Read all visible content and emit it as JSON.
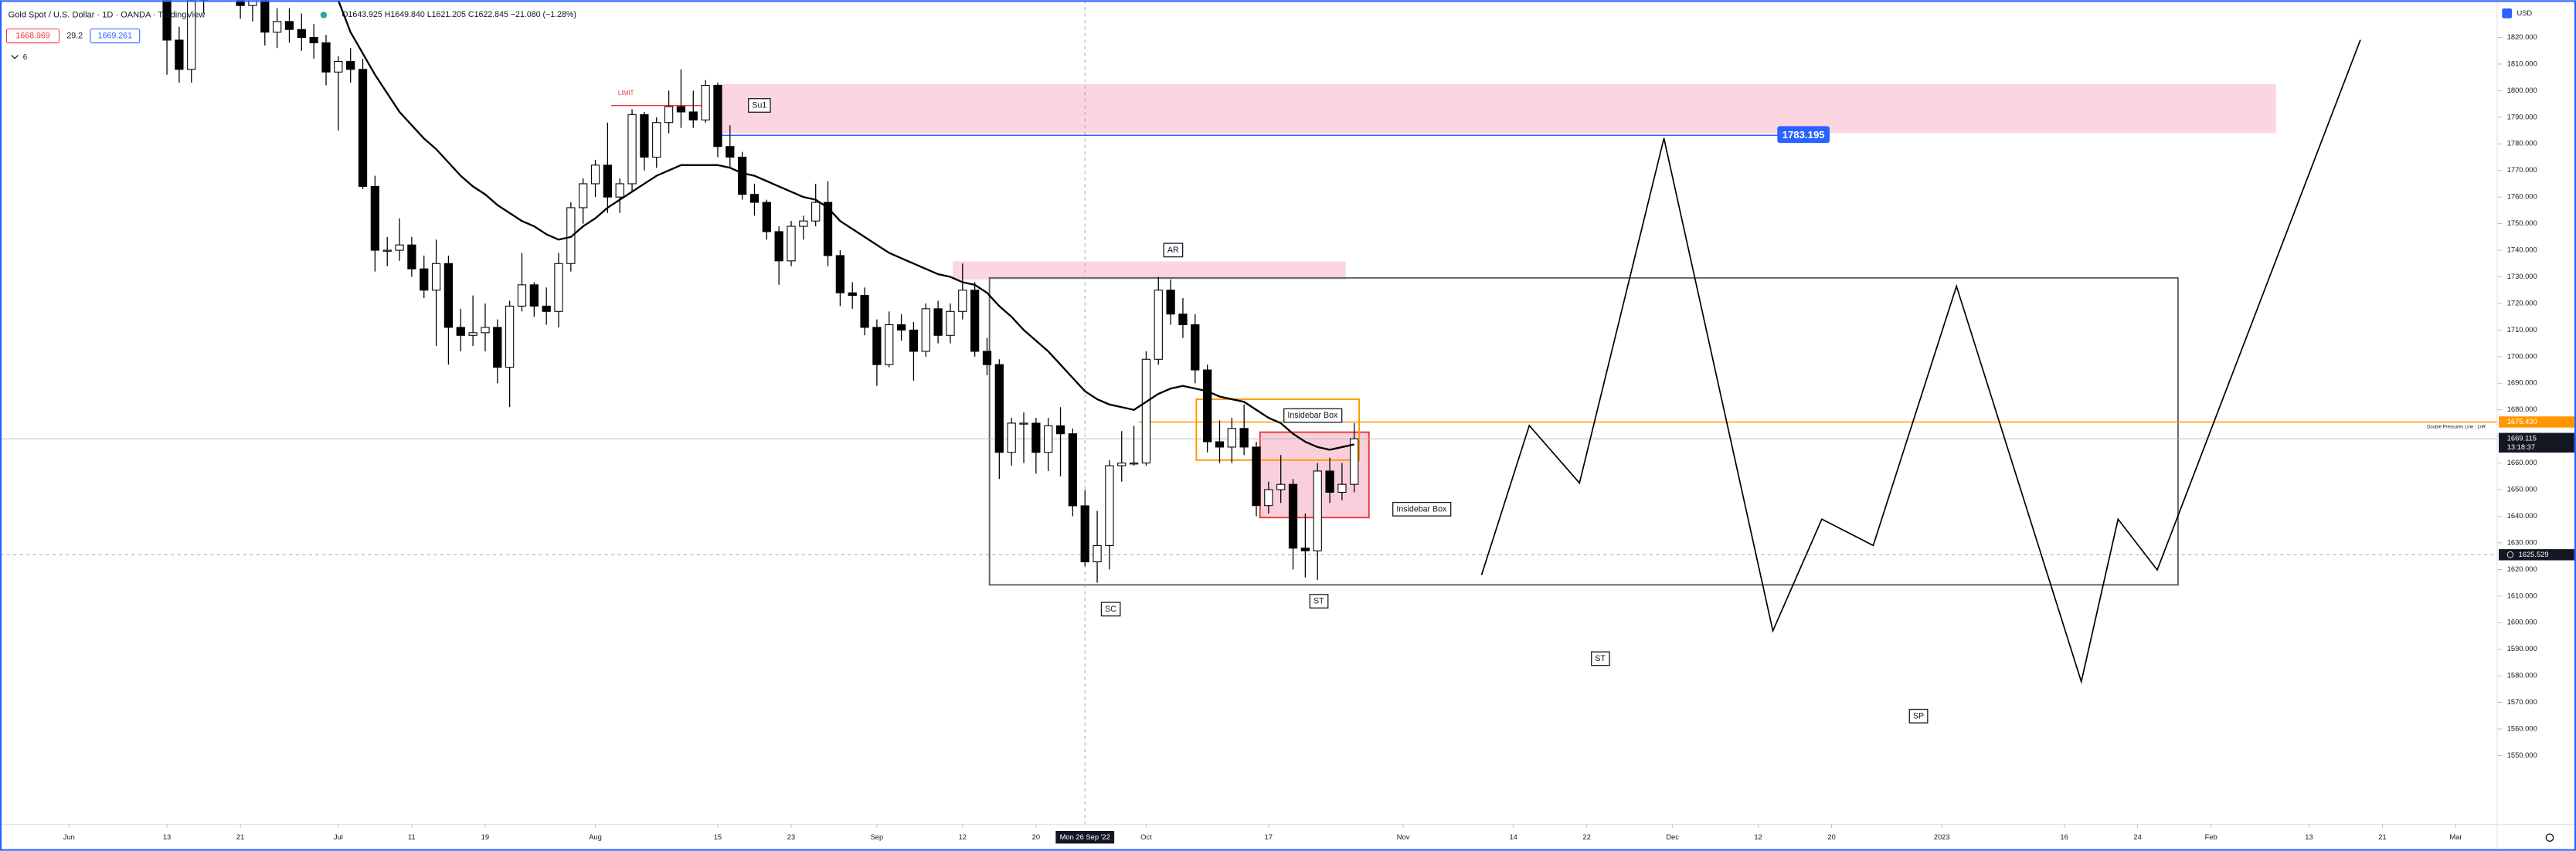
{
  "header": {
    "symbol": "Gold Spot / U.S. Dollar · 1D · OANDA · TradingView",
    "ohlc": "O1643.925 H1649.840 L1621.205 C1622.845 −21.080 (−1.28%)",
    "bid": 1668.969,
    "spread": 29.2,
    "ask": 1669.261,
    "indicators": 6,
    "currency": "USD"
  },
  "chart_data": {
    "type": "candlestick",
    "xlim": [
      -5.638,
      197.7
    ],
    "xticks": [
      {
        "value": 0,
        "label": "Jun"
      },
      {
        "value": 8,
        "label": "13"
      },
      {
        "value": 14,
        "label": "21"
      },
      {
        "value": 22,
        "label": "Jul"
      },
      {
        "value": 28,
        "label": "11"
      },
      {
        "value": 34,
        "label": "19"
      },
      {
        "value": 43,
        "label": "Aug"
      },
      {
        "value": 53,
        "label": "15"
      },
      {
        "value": 59,
        "label": "23"
      },
      {
        "value": 66,
        "label": "Sep"
      },
      {
        "value": 73,
        "label": "12"
      },
      {
        "value": 79,
        "label": "20"
      },
      {
        "value": 88,
        "label": "Oct"
      },
      {
        "value": 98,
        "label": "17"
      },
      {
        "value": 109,
        "label": "Nov"
      },
      {
        "value": 118,
        "label": "14"
      },
      {
        "value": 124,
        "label": "22"
      },
      {
        "value": 131,
        "label": "Dec"
      },
      {
        "value": 138,
        "label": "12"
      },
      {
        "value": 144,
        "label": "20"
      },
      {
        "value": 153,
        "label": "2023"
      },
      {
        "value": 163,
        "label": "16"
      },
      {
        "value": 169,
        "label": "24"
      },
      {
        "value": 175,
        "label": "Feb"
      },
      {
        "value": 183,
        "label": "13"
      },
      {
        "value": 189,
        "label": "21"
      },
      {
        "value": 195,
        "label": "Mar"
      }
    ],
    "ylim": [
      1524.1,
      1834
    ],
    "yticks": [
      {
        "value": 1550,
        "label": "1550.000"
      },
      {
        "value": 1560,
        "label": "1560.000"
      },
      {
        "value": 1570,
        "label": "1570.000"
      },
      {
        "value": 1580,
        "label": "1580.000"
      },
      {
        "value": 1590,
        "label": "1590.000"
      },
      {
        "value": 1600,
        "label": "1600.000"
      },
      {
        "value": 1610,
        "label": "1610.000"
      },
      {
        "value": 1620,
        "label": "1620.000"
      },
      {
        "value": 1630,
        "label": "1630.000"
      },
      {
        "value": 1640,
        "label": "1640.000"
      },
      {
        "value": 1650,
        "label": "1650.000"
      },
      {
        "value": 1660,
        "label": "1660.000"
      },
      {
        "value": 1670,
        "label": "1670.000"
      },
      {
        "value": 1680,
        "label": "1680.000"
      },
      {
        "value": 1690,
        "label": "1690.000"
      },
      {
        "value": 1700,
        "label": "1700.000"
      },
      {
        "value": 1710,
        "label": "1710.000"
      },
      {
        "value": 1720,
        "label": "1720.000"
      },
      {
        "value": 1730,
        "label": "1730.000"
      },
      {
        "value": 1740,
        "label": "1740.000"
      },
      {
        "value": 1750,
        "label": "1750.000"
      },
      {
        "value": 1760,
        "label": "1760.000"
      },
      {
        "value": 1770,
        "label": "1770.000"
      },
      {
        "value": 1780,
        "label": "1780.000"
      },
      {
        "value": 1790,
        "label": "1790.000"
      },
      {
        "value": 1800,
        "label": "1800.000"
      },
      {
        "value": 1810,
        "label": "1810.000"
      },
      {
        "value": 1820,
        "label": "1820.000"
      }
    ],
    "x": [
      8,
      9,
      10,
      11,
      12,
      13,
      14,
      15,
      16,
      17,
      18,
      19,
      20,
      21,
      22,
      23,
      24,
      25,
      26,
      27,
      28,
      29,
      30,
      31,
      32,
      33,
      34,
      35,
      36,
      37,
      38,
      39,
      40,
      41,
      42,
      43,
      44,
      45,
      46,
      47,
      48,
      49,
      50,
      51,
      52,
      53,
      54,
      55,
      56,
      57,
      58,
      59,
      60,
      61,
      62,
      63,
      64,
      65,
      66,
      67,
      68,
      69,
      70,
      71,
      72,
      73,
      74,
      75,
      76,
      77,
      78,
      79,
      80,
      81,
      82,
      83,
      84,
      85,
      86,
      87,
      88,
      89,
      90,
      91,
      92,
      93,
      94,
      95,
      96,
      97,
      98,
      99,
      100,
      101,
      102,
      103,
      104,
      105
    ],
    "series": [
      {
        "type": "candlestick",
        "color": "#000000",
        "up_color": "#ffffff",
        "open": [
          1845,
          1819,
          1808,
          1834,
          1857,
          1840,
          1839,
          1832,
          1838,
          1822,
          1826,
          1823,
          1820,
          1818,
          1807,
          1811,
          1808,
          1764,
          1740,
          1740,
          1742,
          1733,
          1725,
          1735,
          1711,
          1708,
          1709,
          1711,
          1696,
          1719,
          1727,
          1719,
          1717,
          1735,
          1756,
          1765,
          1772,
          1760,
          1765,
          1791,
          1775,
          1788,
          1794,
          1792,
          1789,
          1802,
          1779,
          1775,
          1761,
          1758,
          1747,
          1736,
          1749,
          1751,
          1758,
          1738,
          1724,
          1723,
          1711,
          1697,
          1712,
          1710,
          1702,
          1718,
          1708,
          1717,
          1725,
          1702,
          1697,
          1664,
          1675,
          1675,
          1664,
          1674,
          1671,
          1643.925,
          1622.845,
          1629,
          1659,
          1660,
          1660,
          1699,
          1725,
          1716,
          1712,
          1695,
          1668,
          1666,
          1673,
          1666,
          1644,
          1650,
          1652,
          1628,
          1627,
          1657,
          1649,
          1652
        ],
        "high": [
          1850,
          1824,
          1839,
          1862,
          1862,
          1846,
          1844,
          1847,
          1843,
          1831,
          1831,
          1829,
          1825,
          1821,
          1813,
          1816,
          1812,
          1768,
          1745,
          1752,
          1745,
          1738,
          1744,
          1738,
          1718,
          1723,
          1720,
          1714,
          1721,
          1739,
          1728,
          1726,
          1739,
          1758,
          1767,
          1774,
          1788,
          1767,
          1793,
          1792,
          1790,
          1800,
          1808,
          1800,
          1804,
          1803,
          1787,
          1777,
          1765,
          1759,
          1749,
          1751,
          1753,
          1765,
          1766,
          1740,
          1728,
          1726,
          1714,
          1717,
          1716,
          1713,
          1720,
          1721,
          1720,
          1735,
          1728,
          1707,
          1699,
          1677,
          1679,
          1677,
          1677,
          1681,
          1673,
          1649.84,
          1642,
          1661,
          1672,
          1674,
          1702,
          1730,
          1729,
          1722,
          1716,
          1697,
          1676,
          1677,
          1682,
          1668,
          1653,
          1663,
          1654,
          1641,
          1660,
          1662,
          1660,
          1675
        ],
        "low": [
          1806,
          1803,
          1803,
          1829,
          1835,
          1834,
          1827,
          1826,
          1817,
          1816,
          1818,
          1815,
          1812,
          1802,
          1785,
          1803,
          1763,
          1732,
          1734,
          1736,
          1730,
          1722,
          1704,
          1697,
          1702,
          1704,
          1702,
          1690,
          1681,
          1717,
          1715,
          1712,
          1711,
          1732,
          1750,
          1760,
          1754,
          1754,
          1762,
          1770,
          1771,
          1784,
          1786,
          1786,
          1788,
          1775,
          1771,
          1759,
          1753,
          1744,
          1727,
          1734,
          1744,
          1749,
          1734,
          1719,
          1718,
          1708,
          1689,
          1696,
          1706,
          1691,
          1700,
          1705,
          1705,
          1714,
          1700,
          1693,
          1654,
          1659,
          1660,
          1656,
          1657,
          1655,
          1640,
          1621.205,
          1615,
          1620,
          1653,
          1659,
          1659,
          1697,
          1712,
          1707,
          1690,
          1664,
          1660,
          1660,
          1663,
          1640,
          1641,
          1645,
          1620,
          1617,
          1616,
          1645,
          1646,
          1649
        ],
        "close": [
          1819,
          1808,
          1834,
          1857,
          1840,
          1839,
          1832,
          1838,
          1822,
          1826,
          1823,
          1820,
          1818,
          1807,
          1811,
          1808,
          1764,
          1740,
          1740,
          1742,
          1733,
          1725,
          1735,
          1711,
          1708,
          1709,
          1711,
          1696,
          1719,
          1727,
          1719,
          1717,
          1735,
          1756,
          1765,
          1772,
          1760,
          1765,
          1791,
          1775,
          1788,
          1794,
          1792,
          1789,
          1802,
          1779,
          1775,
          1761,
          1758,
          1747,
          1736,
          1749,
          1751,
          1758,
          1738,
          1724,
          1723,
          1711,
          1697,
          1712,
          1710,
          1702,
          1718,
          1708,
          1717,
          1725,
          1702,
          1697,
          1664,
          1675,
          1675,
          1664,
          1674,
          1671,
          1643.925,
          1622.845,
          1629,
          1659,
          1660,
          1660,
          1699,
          1725,
          1716,
          1712,
          1695,
          1668,
          1666,
          1673,
          1666,
          1644,
          1650,
          1652,
          1628,
          1627,
          1657,
          1649,
          1652,
          1669.115
        ]
      },
      {
        "type": "line",
        "color": "#000000",
        "values": [
          null,
          null,
          null,
          null,
          null,
          null,
          null,
          null,
          null,
          null,
          null,
          null,
          null,
          null,
          1834,
          1822,
          1814,
          1806,
          1799,
          1792,
          1787,
          1782,
          1778,
          1773,
          1768,
          1764,
          1761,
          1757,
          1754,
          1751,
          1749,
          1746,
          1744,
          1745,
          1749,
          1752,
          1756,
          1759,
          1762,
          1765,
          1768,
          1770,
          1772,
          1772,
          1772,
          1772,
          1771,
          1769,
          1768,
          1766,
          1764,
          1762,
          1760,
          1759,
          1756,
          1751,
          1748,
          1745,
          1742,
          1739,
          1737,
          1735,
          1733,
          1731,
          1730,
          1728,
          1727,
          1724,
          1719,
          1715,
          1710,
          1706,
          1702,
          1697,
          1692,
          1687,
          1684,
          1682,
          1681,
          1680,
          1683,
          1686,
          1688,
          1689,
          1688,
          1687,
          1685,
          1684,
          1683,
          1680,
          1677,
          1675,
          1671,
          1668,
          1666,
          1665,
          1666,
          1667
        ]
      }
    ],
    "zones": [
      {
        "x": [
          53.0,
          180.3
        ],
        "y": [
          1784.0,
          1802.5
        ],
        "fill": "#fbd5e2"
      },
      {
        "x": [
          72.2,
          104.3
        ],
        "y": [
          1729.0,
          1735.8
        ],
        "fill": "#fbd5e2"
      },
      {
        "x": [
          75.2,
          172.3
        ],
        "y": [
          1614.2,
          1729.6
        ],
        "stroke": "#5d606b"
      },
      {
        "x": [
          97.3,
          106.2
        ],
        "y": [
          1639.5,
          1671.6
        ],
        "fill": "#f9cfdc",
        "stroke": "#e53935"
      },
      {
        "x": [
          92.1,
          105.4
        ],
        "y": [
          1661.1,
          1684.0
        ],
        "stroke": "#ff9800"
      }
    ],
    "levels": [
      {
        "value": 1783.195,
        "x": [
          53.0,
          141.7
        ],
        "color": "#2962ff",
        "badge": true
      },
      {
        "value": 1794.4,
        "x": [
          44.3,
          52.1
        ],
        "color": "#f23645"
      },
      {
        "value": 1675.43,
        "x_start": 87.4,
        "color": "#ff9800",
        "label": "1675.430",
        "text": "Double Pressures Line : 1nR"
      },
      {
        "value": 1669.115,
        "color": "#b2b5be",
        "countdown": "13:18:37",
        "axis_color": "#131722"
      }
    ],
    "crosshair": {
      "x": 83,
      "x_label": "Mon 26 Sep '22",
      "y": 1625.529
    },
    "labels": [
      {
        "text": "Su1",
        "x": 56.4,
        "y": 1794.4,
        "box": true
      },
      {
        "text": "LIMIT",
        "x": 45.5,
        "y": 1799,
        "color": "#f23645"
      },
      {
        "text": "AR",
        "x": 90.2,
        "y": 1740,
        "box": true
      },
      {
        "text": "Insidebar Box",
        "x": 101.6,
        "y": 1677.8,
        "box": true
      },
      {
        "text": "Insidebar Box",
        "x": 110.5,
        "y": 1642.6,
        "box": true
      },
      {
        "text": "SC",
        "x": 85.1,
        "y": 1605,
        "box": true
      },
      {
        "text": "ST",
        "x": 102.1,
        "y": 1608,
        "box": true
      },
      {
        "text": "ST",
        "x": 125.1,
        "y": 1586.4,
        "box": true
      },
      {
        "text": "SP",
        "x": 151.1,
        "y": 1564.8,
        "box": true
      }
    ],
    "projection": {
      "x": [
        115.4,
        119.3,
        123.4,
        130.3,
        139.2,
        143.2,
        147.4,
        154.2,
        164.4,
        167.4,
        170.6,
        187.2
      ],
      "y": [
        1617.9,
        1674.1,
        1652.5,
        1782.1,
        1596.9,
        1638.9,
        1629.0,
        1726.5,
        1577.8,
        1638.9,
        1619.8,
        1819.1
      ]
    }
  }
}
